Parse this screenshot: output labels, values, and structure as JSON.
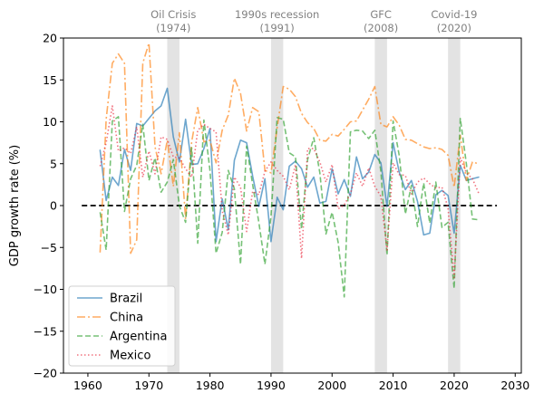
{
  "chart_data": {
    "type": "line",
    "title": "",
    "xlabel": "",
    "ylabel": "GDP growth rate (%)",
    "xlim": [
      1956,
      2031
    ],
    "ylim": [
      -20,
      20
    ],
    "xticks": [
      1960,
      1970,
      1980,
      1990,
      2000,
      2010,
      2020,
      2030
    ],
    "yticks": [
      -20,
      -15,
      -10,
      -5,
      0,
      5,
      10,
      15,
      20
    ],
    "grid": false,
    "legend_position": "lower-left",
    "reference_line": {
      "y": 0,
      "x_start": 1959,
      "x_end": 2027,
      "style": "dashed",
      "color": "#000000"
    },
    "events": [
      {
        "line1": "Oil Crisis",
        "line2": "(1974)",
        "x_start": 1973,
        "x_end": 1975
      },
      {
        "line1": "1990s recession",
        "line2": "(1991)",
        "x_start": 1990,
        "x_end": 1992
      },
      {
        "line1": "GFC",
        "line2": "(2008)",
        "x_start": 2007,
        "x_end": 2009
      },
      {
        "line1": "Covid-19",
        "line2": "(2020)",
        "x_start": 2019,
        "x_end": 2021
      }
    ],
    "series": [
      {
        "name": "Brazil",
        "color": "#1f77b4",
        "dash": "",
        "x": [
          1962,
          1963,
          1964,
          1965,
          1966,
          1967,
          1968,
          1969,
          1970,
          1971,
          1972,
          1973,
          1974,
          1975,
          1976,
          1977,
          1978,
          1979,
          1980,
          1981,
          1982,
          1983,
          1984,
          1985,
          1986,
          1987,
          1988,
          1989,
          1990,
          1991,
          1992,
          1993,
          1994,
          1995,
          1996,
          1997,
          1998,
          1999,
          2000,
          2001,
          2002,
          2003,
          2004,
          2005,
          2006,
          2007,
          2008,
          2009,
          2010,
          2011,
          2012,
          2013,
          2014,
          2015,
          2016,
          2017,
          2018,
          2019,
          2020,
          2021,
          2022,
          2023,
          2024
        ],
        "y": [
          6.6,
          0.6,
          3.4,
          2.4,
          6.7,
          4.2,
          9.8,
          9.5,
          10.4,
          11.3,
          11.9,
          14.0,
          8.2,
          5.2,
          10.3,
          4.9,
          5.0,
          6.8,
          9.2,
          -4.3,
          0.8,
          -2.9,
          5.4,
          7.8,
          7.5,
          3.5,
          -0.1,
          3.2,
          -4.3,
          1.0,
          -0.5,
          4.7,
          5.3,
          4.4,
          2.2,
          3.4,
          0.3,
          0.5,
          4.4,
          1.4,
          3.1,
          1.1,
          5.8,
          3.2,
          4.0,
          6.1,
          5.1,
          -0.1,
          7.5,
          4.0,
          1.9,
          3.0,
          0.5,
          -3.5,
          -3.3,
          1.3,
          1.8,
          1.2,
          -3.3,
          4.8,
          3.0,
          3.2,
          3.4
        ]
      },
      {
        "name": "China",
        "color": "#ff7f0e",
        "dash": "9 3 2 3",
        "x": [
          1962,
          1963,
          1964,
          1965,
          1966,
          1967,
          1968,
          1969,
          1970,
          1971,
          1972,
          1973,
          1974,
          1975,
          1976,
          1977,
          1978,
          1979,
          1980,
          1981,
          1982,
          1983,
          1984,
          1985,
          1986,
          1987,
          1988,
          1989,
          1990,
          1991,
          1992,
          1993,
          1994,
          1995,
          1996,
          1997,
          1998,
          1999,
          2000,
          2001,
          2002,
          2003,
          2004,
          2005,
          2006,
          2007,
          2008,
          2009,
          2010,
          2011,
          2012,
          2013,
          2014,
          2015,
          2016,
          2017,
          2018,
          2019,
          2020,
          2021,
          2022,
          2023,
          2024
        ],
        "y": [
          -5.6,
          10.3,
          17.0,
          18.1,
          17.0,
          -5.7,
          -4.1,
          17.0,
          19.4,
          7.0,
          3.8,
          7.8,
          2.3,
          8.7,
          -1.6,
          7.6,
          11.7,
          7.6,
          7.8,
          5.1,
          9.0,
          10.8,
          15.2,
          13.4,
          8.9,
          11.7,
          11.2,
          4.2,
          3.9,
          9.3,
          14.2,
          13.9,
          13.0,
          11.0,
          9.9,
          9.2,
          7.8,
          7.7,
          8.5,
          8.3,
          9.1,
          10.0,
          10.1,
          11.4,
          12.7,
          14.2,
          9.7,
          9.4,
          10.6,
          9.6,
          7.9,
          7.8,
          7.4,
          7.0,
          6.8,
          6.9,
          6.7,
          6.0,
          2.2,
          8.4,
          3.0,
          5.2,
          5.0
        ]
      },
      {
        "name": "Argentina",
        "color": "#2ca02c",
        "dash": "6 3",
        "x": [
          1962,
          1963,
          1964,
          1965,
          1966,
          1967,
          1968,
          1969,
          1970,
          1971,
          1972,
          1973,
          1974,
          1975,
          1976,
          1977,
          1978,
          1979,
          1980,
          1981,
          1982,
          1983,
          1984,
          1985,
          1986,
          1987,
          1988,
          1989,
          1990,
          1991,
          1992,
          1993,
          1994,
          1995,
          1996,
          1997,
          1998,
          1999,
          2000,
          2001,
          2002,
          2003,
          2004,
          2005,
          2006,
          2007,
          2008,
          2009,
          2010,
          2011,
          2012,
          2013,
          2014,
          2015,
          2016,
          2017,
          2018,
          2019,
          2020,
          2021,
          2022,
          2023,
          2024
        ],
        "y": [
          -0.8,
          -5.3,
          10.1,
          10.6,
          -0.7,
          3.2,
          4.8,
          9.7,
          3.0,
          5.7,
          1.6,
          2.8,
          5.5,
          -0.03,
          -2.0,
          6.9,
          -4.5,
          10.2,
          4.2,
          -5.7,
          -3.2,
          4.2,
          2.0,
          -7.0,
          7.1,
          2.5,
          -2.0,
          -7.0,
          -1.3,
          10.5,
          10.3,
          6.3,
          5.8,
          -2.8,
          5.5,
          8.1,
          3.9,
          -3.4,
          -0.8,
          -4.4,
          -10.9,
          8.8,
          9.0,
          8.9,
          8.0,
          9.0,
          4.1,
          -5.9,
          10.1,
          6.0,
          -1.0,
          2.4,
          -2.5,
          2.7,
          -2.1,
          2.8,
          -2.6,
          -2.0,
          -9.9,
          10.4,
          5.0,
          -1.6,
          -1.7
        ]
      },
      {
        "name": "Mexico",
        "color": "#e9263a",
        "dash": "1.5 2.5",
        "x": [
          1962,
          1963,
          1964,
          1965,
          1966,
          1967,
          1968,
          1969,
          1970,
          1971,
          1972,
          1973,
          1974,
          1975,
          1976,
          1977,
          1978,
          1979,
          1980,
          1981,
          1982,
          1983,
          1984,
          1985,
          1986,
          1987,
          1988,
          1989,
          1990,
          1991,
          1992,
          1993,
          1994,
          1995,
          1996,
          1997,
          1998,
          1999,
          2000,
          2001,
          2002,
          2003,
          2004,
          2005,
          2006,
          2007,
          2008,
          2009,
          2010,
          2011,
          2012,
          2013,
          2014,
          2015,
          2016,
          2017,
          2018,
          2019,
          2020,
          2021,
          2022,
          2023,
          2024
        ],
        "y": [
          4.7,
          7.5,
          11.9,
          6.5,
          6.9,
          6.2,
          9.4,
          3.4,
          6.5,
          3.8,
          8.2,
          7.9,
          5.8,
          5.7,
          4.4,
          3.4,
          9.0,
          9.7,
          9.2,
          8.8,
          -0.6,
          -3.5,
          3.4,
          2.2,
          -3.1,
          1.7,
          1.3,
          4.1,
          5.2,
          4.2,
          3.5,
          1.9,
          4.9,
          -6.3,
          6.8,
          6.8,
          5.2,
          2.8,
          4.9,
          -0.4,
          0.1,
          1.4,
          3.9,
          2.3,
          4.5,
          2.3,
          1.1,
          -5.3,
          5.1,
          3.7,
          3.6,
          1.4,
          2.8,
          3.3,
          2.6,
          2.1,
          2.2,
          -0.3,
          -8.6,
          5.7,
          3.9,
          3.2,
          1.5
        ]
      }
    ]
  }
}
